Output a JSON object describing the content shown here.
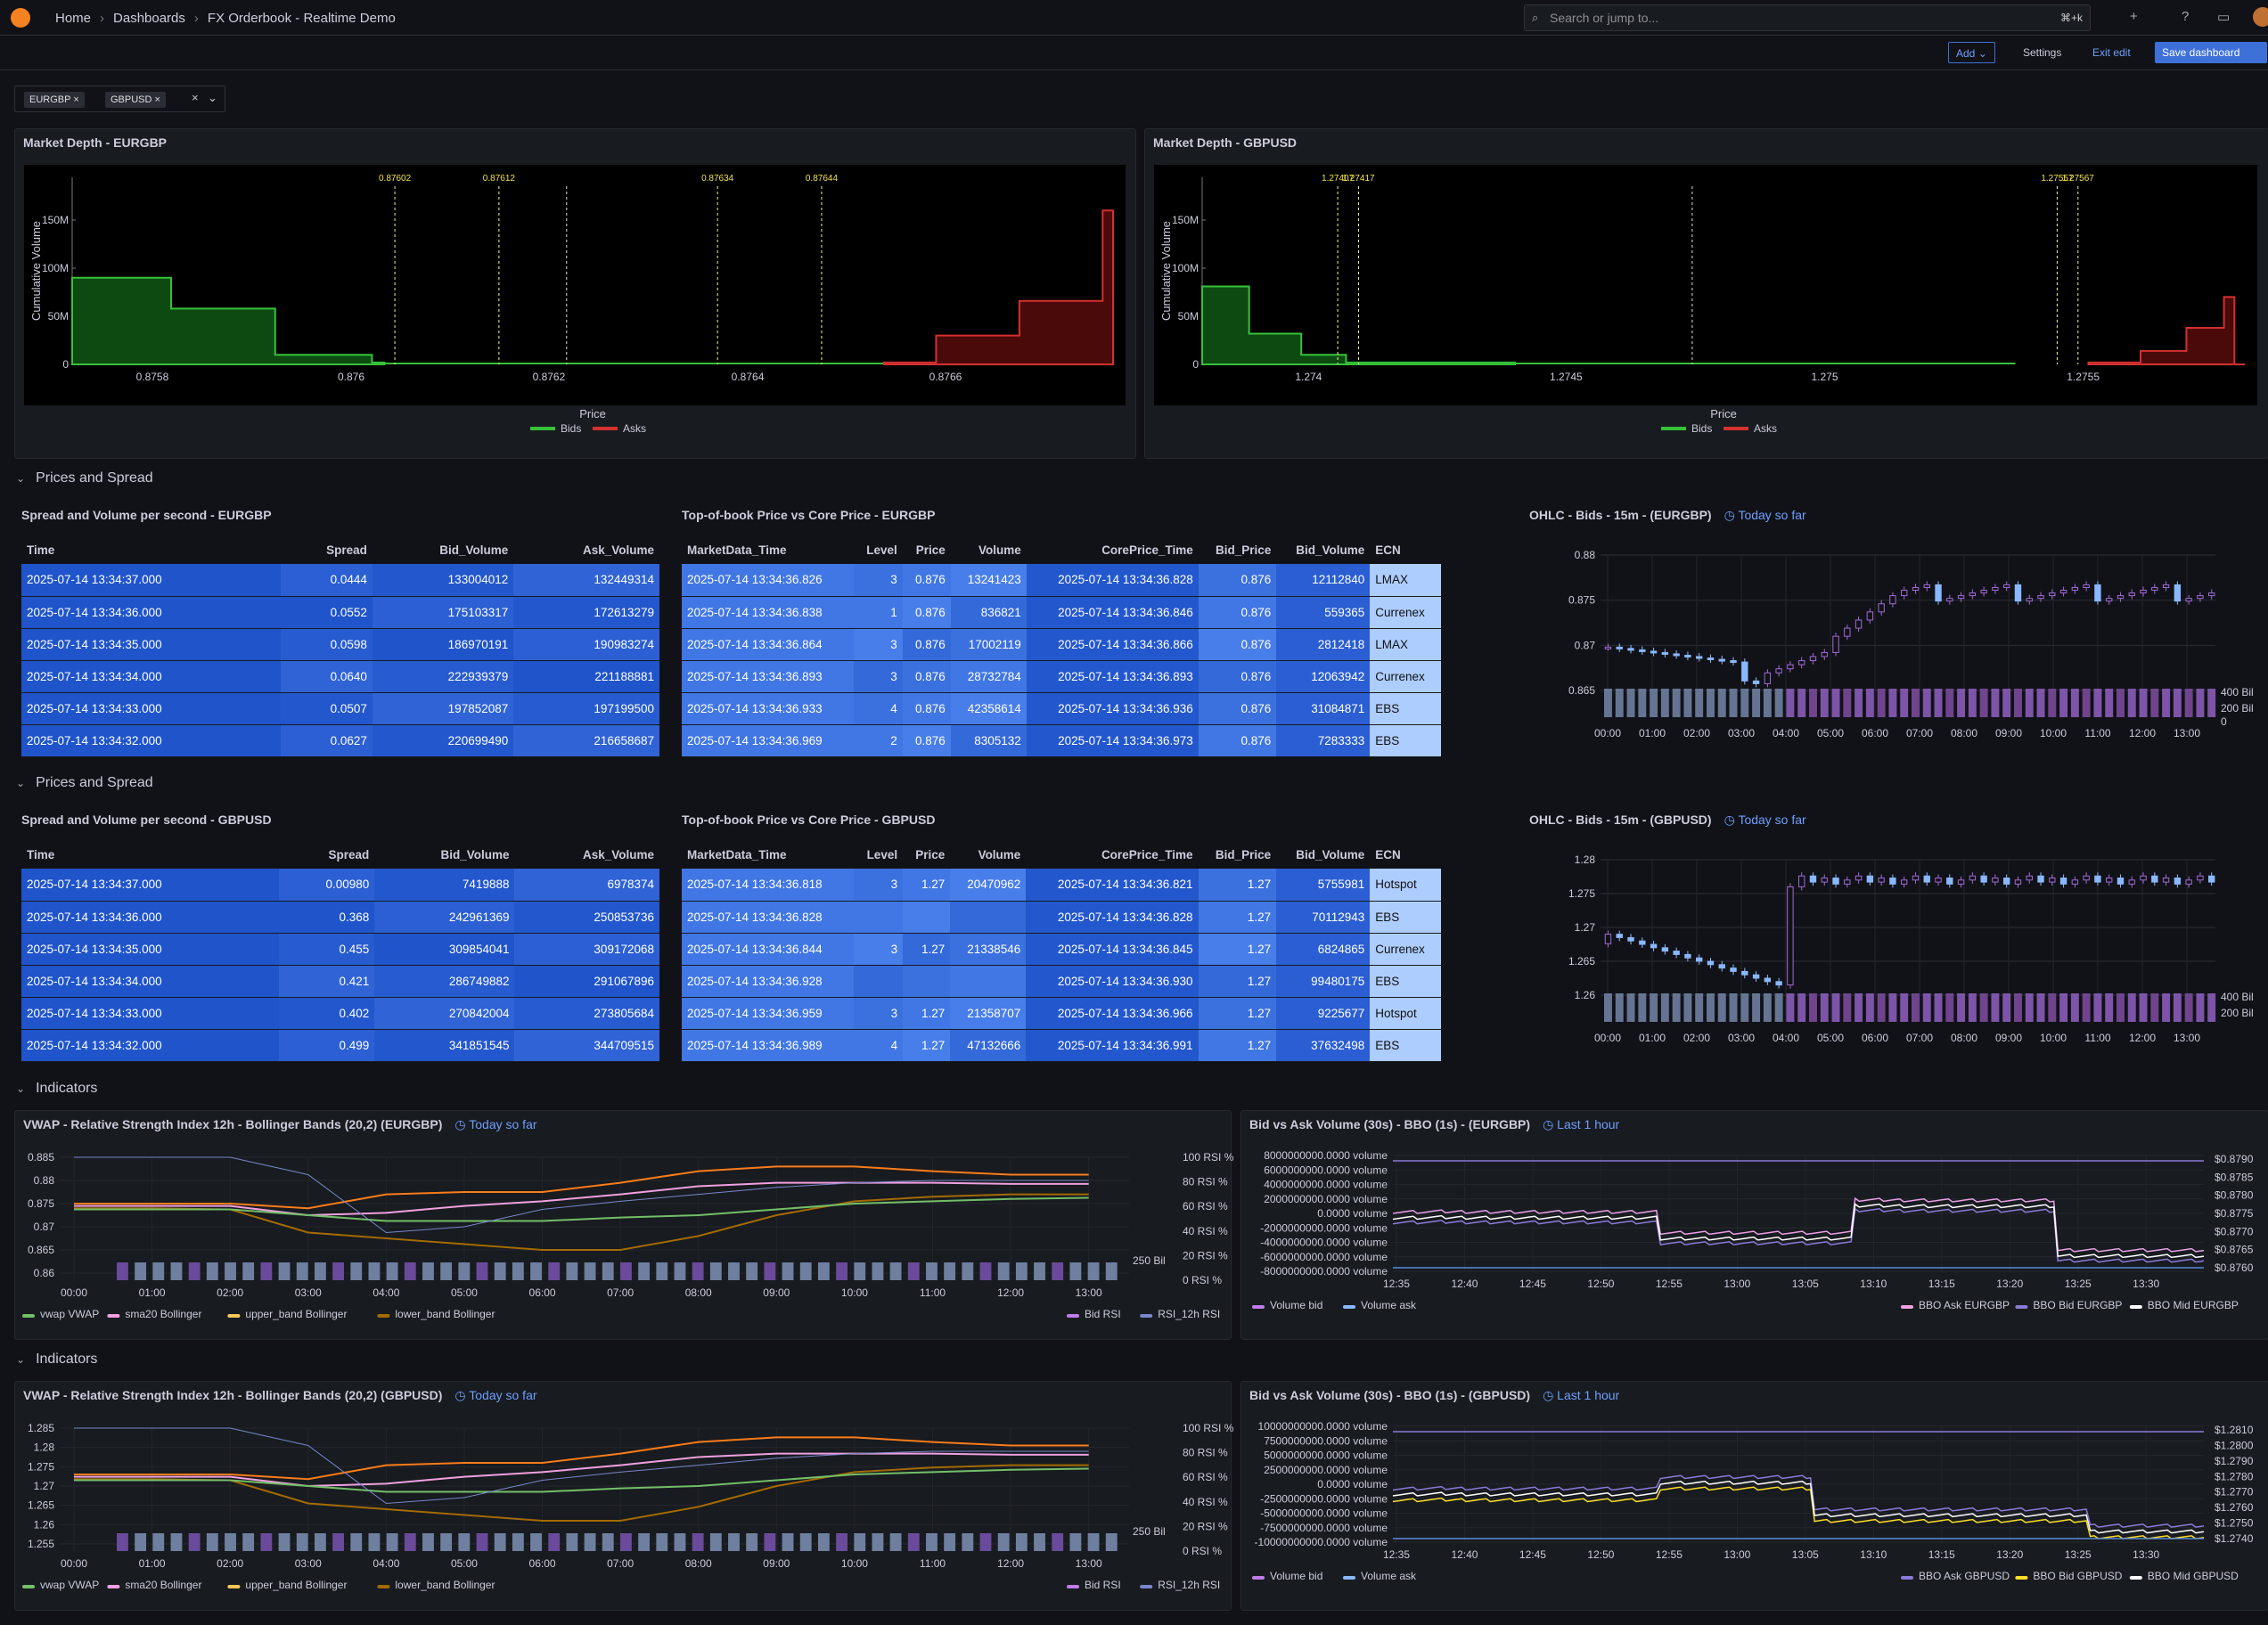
{
  "topbar": {
    "breadcrumbs": [
      "Home",
      "Dashboards",
      "FX Orderbook - Realtime Demo"
    ],
    "search_placeholder": "Search or jump to...",
    "search_shortcut": "⌘+k"
  },
  "toolbar": {
    "add": "Add",
    "settings": "Settings",
    "exit_edit": "Exit edit",
    "save": "Save dashboard"
  },
  "variables": {
    "values": [
      "EURGBP",
      "GBPUSD"
    ]
  },
  "depth": [
    {
      "title": "Market Depth - EURGBP",
      "ylabel": "Cumulative Volume",
      "xlabel": "Price",
      "yticks": [
        "0",
        "50M",
        "100M",
        "150M"
      ],
      "xticks": [
        "0.8758",
        "0.876",
        "0.8762",
        "0.8764",
        "0.8766"
      ],
      "markers": [
        "0.87602",
        "0.87612",
        "0.87634",
        "0.87644"
      ],
      "legend": [
        "Bids",
        "Asks"
      ]
    },
    {
      "title": "Market Depth - GBPUSD",
      "ylabel": "Cumulative Volume",
      "xlabel": "Price",
      "yticks": [
        "0",
        "50M",
        "100M",
        "150M"
      ],
      "xticks": [
        "1.274",
        "1.2745",
        "1.275",
        "1.2755"
      ],
      "markers": [
        "1.27407",
        "1.27417",
        "1.27557",
        "1.27567"
      ],
      "legend": [
        "Bids",
        "Asks"
      ]
    }
  ],
  "rows": {
    "prices1": "Prices and Spread",
    "prices2": "Prices and Spread",
    "ind1": "Indicators",
    "ind2": "Indicators"
  },
  "spread": [
    {
      "title": "Spread and Volume per second - EURGBP",
      "headers": [
        "Time",
        "Spread",
        "Bid_Volume",
        "Ask_Volume"
      ],
      "rows": [
        [
          "2025-07-14 13:34:37.000",
          "0.0444",
          "133004012",
          "132449314"
        ],
        [
          "2025-07-14 13:34:36.000",
          "0.0552",
          "175103317",
          "172613279"
        ],
        [
          "2025-07-14 13:34:35.000",
          "0.0598",
          "186970191",
          "190983274"
        ],
        [
          "2025-07-14 13:34:34.000",
          "0.0640",
          "222939379",
          "221188881"
        ],
        [
          "2025-07-14 13:34:33.000",
          "0.0507",
          "197852087",
          "197199500"
        ],
        [
          "2025-07-14 13:34:32.000",
          "0.0627",
          "220699490",
          "216658687"
        ]
      ]
    },
    {
      "title": "Spread and Volume per second - GBPUSD",
      "headers": [
        "Time",
        "Spread",
        "Bid_Volume",
        "Ask_Volume"
      ],
      "rows": [
        [
          "2025-07-14 13:34:37.000",
          "0.00980",
          "7419888",
          "6978374"
        ],
        [
          "2025-07-14 13:34:36.000",
          "0.368",
          "242961369",
          "250853736"
        ],
        [
          "2025-07-14 13:34:35.000",
          "0.455",
          "309854041",
          "309172068"
        ],
        [
          "2025-07-14 13:34:34.000",
          "0.421",
          "286749882",
          "291067896"
        ],
        [
          "2025-07-14 13:34:33.000",
          "0.402",
          "270842004",
          "273805684"
        ],
        [
          "2025-07-14 13:34:32.000",
          "0.499",
          "341851545",
          "344709515"
        ]
      ]
    }
  ],
  "tob": [
    {
      "title": "Top-of-book Price vs Core Price - EURGBP",
      "headers": [
        "MarketData_Time",
        "Level",
        "Price",
        "Volume",
        "CorePrice_Time",
        "Bid_Price",
        "Bid_Volume",
        "ECN"
      ],
      "rows": [
        [
          "2025-07-14 13:34:36.826",
          "3",
          "0.876",
          "13241423",
          "2025-07-14 13:34:36.828",
          "0.876",
          "12112840",
          "LMAX"
        ],
        [
          "2025-07-14 13:34:36.838",
          "1",
          "0.876",
          "836821",
          "2025-07-14 13:34:36.846",
          "0.876",
          "559365",
          "Currenex"
        ],
        [
          "2025-07-14 13:34:36.864",
          "3",
          "0.876",
          "17002119",
          "2025-07-14 13:34:36.866",
          "0.876",
          "2812418",
          "LMAX"
        ],
        [
          "2025-07-14 13:34:36.893",
          "3",
          "0.876",
          "28732784",
          "2025-07-14 13:34:36.893",
          "0.876",
          "12063942",
          "Currenex"
        ],
        [
          "2025-07-14 13:34:36.933",
          "4",
          "0.876",
          "42358614",
          "2025-07-14 13:34:36.936",
          "0.876",
          "31084871",
          "EBS"
        ],
        [
          "2025-07-14 13:34:36.969",
          "2",
          "0.876",
          "8305132",
          "2025-07-14 13:34:36.973",
          "0.876",
          "7283333",
          "EBS"
        ]
      ]
    },
    {
      "title": "Top-of-book Price vs Core Price - GBPUSD",
      "headers": [
        "MarketData_Time",
        "Level",
        "Price",
        "Volume",
        "CorePrice_Time",
        "Bid_Price",
        "Bid_Volume",
        "ECN"
      ],
      "rows": [
        [
          "2025-07-14 13:34:36.818",
          "3",
          "1.27",
          "20470962",
          "2025-07-14 13:34:36.821",
          "1.27",
          "5755981",
          "Hotspot"
        ],
        [
          "2025-07-14 13:34:36.828",
          "",
          "",
          "",
          "2025-07-14 13:34:36.828",
          "1.27",
          "70112943",
          "EBS"
        ],
        [
          "2025-07-14 13:34:36.844",
          "3",
          "1.27",
          "21338546",
          "2025-07-14 13:34:36.845",
          "1.27",
          "6824865",
          "Currenex"
        ],
        [
          "2025-07-14 13:34:36.928",
          "",
          "",
          "",
          "2025-07-14 13:34:36.930",
          "1.27",
          "99480175",
          "EBS"
        ],
        [
          "2025-07-14 13:34:36.959",
          "3",
          "1.27",
          "21358707",
          "2025-07-14 13:34:36.966",
          "1.27",
          "9225677",
          "Hotspot"
        ],
        [
          "2025-07-14 13:34:36.989",
          "4",
          "1.27",
          "47132666",
          "2025-07-14 13:34:36.991",
          "1.27",
          "37632498",
          "EBS"
        ]
      ]
    }
  ],
  "ohlc": [
    {
      "title": "OHLC - Bids - 15m - (EURGBP)",
      "range": "Today so far",
      "yticks": [
        "0.865",
        "0.87",
        "0.875",
        "0.88"
      ],
      "vticks": [
        "0",
        "200 Bil",
        "400 Bil"
      ],
      "xticks": [
        "00:00",
        "01:00",
        "02:00",
        "03:00",
        "04:00",
        "05:00",
        "06:00",
        "07:00",
        "08:00",
        "09:00",
        "10:00",
        "11:00",
        "12:00",
        "13:00"
      ]
    },
    {
      "title": "OHLC - Bids - 15m - (GBPUSD)",
      "range": "Today so far",
      "yticks": [
        "1.26",
        "1.265",
        "1.27",
        "1.275",
        "1.28"
      ],
      "vticks": [
        "200 Bil",
        "400 Bil"
      ],
      "xticks": [
        "00:00",
        "01:00",
        "02:00",
        "03:00",
        "04:00",
        "05:00",
        "06:00",
        "07:00",
        "08:00",
        "09:00",
        "10:00",
        "11:00",
        "12:00",
        "13:00"
      ]
    }
  ],
  "vwap": [
    {
      "title": "VWAP - Relative Strength Index 12h - Bollinger Bands (20,2) (EURGBP)",
      "range": "Today so far",
      "yticks": [
        "0.86",
        "0.865",
        "0.87",
        "0.875",
        "0.88",
        "0.885"
      ],
      "rticks": [
        "0 RSI %",
        "20 RSI %",
        "40 RSI %",
        "60 RSI %",
        "80 RSI %",
        "100 RSI %"
      ],
      "vtick": "250 Bil",
      "xticks": [
        "00:00",
        "01:00",
        "02:00",
        "03:00",
        "04:00",
        "05:00",
        "06:00",
        "07:00",
        "08:00",
        "09:00",
        "10:00",
        "11:00",
        "12:00",
        "13:00"
      ],
      "legend_left": [
        "vwap VWAP",
        "sma20 Bollinger",
        "upper_band Bollinger",
        "lower_band Bollinger"
      ],
      "legend_right": [
        "Bid RSI",
        "RSI_12h RSI"
      ]
    },
    {
      "title": "VWAP - Relative Strength Index 12h - Bollinger Bands (20,2) (GBPUSD)",
      "range": "Today so far",
      "yticks": [
        "1.255",
        "1.26",
        "1.265",
        "1.27",
        "1.275",
        "1.28",
        "1.285"
      ],
      "rticks": [
        "0 RSI %",
        "20 RSI %",
        "40 RSI %",
        "60 RSI %",
        "80 RSI %",
        "100 RSI %"
      ],
      "vtick": "250 Bil",
      "xticks": [
        "00:00",
        "01:00",
        "02:00",
        "03:00",
        "04:00",
        "05:00",
        "06:00",
        "07:00",
        "08:00",
        "09:00",
        "10:00",
        "11:00",
        "12:00",
        "13:00"
      ],
      "legend_left": [
        "vwap VWAP",
        "sma20 Bollinger",
        "upper_band Bollinger",
        "lower_band Bollinger"
      ],
      "legend_right": [
        "Bid RSI",
        "RSI_12h RSI"
      ]
    }
  ],
  "bbo": [
    {
      "title": "Bid vs Ask Volume (30s) - BBO (1s) - (EURGBP)",
      "range": "Last 1 hour",
      "yticks": [
        "-8000000000.0000 volume",
        "-6000000000.0000 volume",
        "-4000000000.0000 volume",
        "-2000000000.0000 volume",
        "0.0000 volume",
        "2000000000.0000 volume",
        "4000000000.0000 volume",
        "6000000000.0000 volume",
        "8000000000.0000 volume"
      ],
      "rticks": [
        "$0.8760",
        "$0.8765",
        "$0.8770",
        "$0.8775",
        "$0.8780",
        "$0.8785",
        "$0.8790"
      ],
      "xticks": [
        "12:35",
        "12:40",
        "12:45",
        "12:50",
        "12:55",
        "13:00",
        "13:05",
        "13:10",
        "13:15",
        "13:20",
        "13:25",
        "13:30"
      ],
      "legend_left": [
        "Volume bid",
        "Volume ask"
      ],
      "legend_right": [
        "BBO Ask EURGBP",
        "BBO Bid EURGBP",
        "BBO Mid EURGBP"
      ]
    },
    {
      "title": "Bid vs Ask Volume (30s) - BBO (1s) - (GBPUSD)",
      "range": "Last 1 hour",
      "yticks": [
        "-10000000000.0000 volume",
        "-7500000000.0000 volume",
        "-5000000000.0000 volume",
        "-2500000000.0000 volume",
        "0.0000 volume",
        "2500000000.0000 volume",
        "5000000000.0000 volume",
        "7500000000.0000 volume",
        "10000000000.0000 volume"
      ],
      "rticks": [
        "$1.2740",
        "$1.2750",
        "$1.2760",
        "$1.2770",
        "$1.2780",
        "$1.2790",
        "$1.2800",
        "$1.2810"
      ],
      "xticks": [
        "12:35",
        "12:40",
        "12:45",
        "12:50",
        "12:55",
        "13:00",
        "13:05",
        "13:10",
        "13:15",
        "13:20",
        "13:25",
        "13:30"
      ],
      "legend_left": [
        "Volume bid",
        "Volume ask"
      ],
      "legend_right": [
        "BBO Ask GBPUSD",
        "BBO Bid GBPUSD",
        "BBO Mid GBPUSD"
      ]
    }
  ]
}
